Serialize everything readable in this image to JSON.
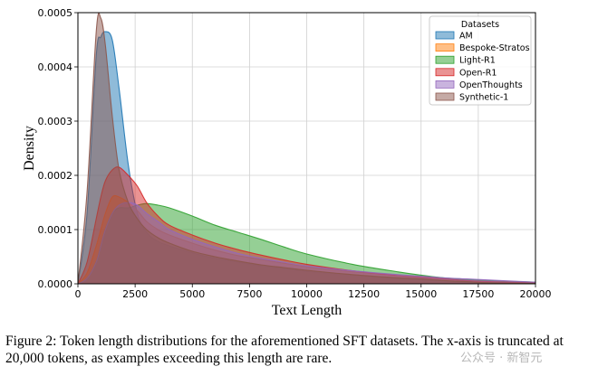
{
  "chart_data": {
    "type": "area",
    "title": "",
    "xlabel": "Text Length",
    "ylabel": "Density",
    "xlim": [
      0,
      20000
    ],
    "ylim": [
      0,
      0.0005
    ],
    "x_ticks": [
      "0",
      "2500",
      "5000",
      "7500",
      "10000",
      "12500",
      "15000",
      "17500",
      "20000"
    ],
    "y_ticks": [
      "0.0000",
      "0.0001",
      "0.0002",
      "0.0003",
      "0.0004",
      "0.0005"
    ],
    "grid": true,
    "legend": {
      "title": "Datasets",
      "position": "top-right"
    },
    "x": [
      0,
      400,
      800,
      1000,
      1200,
      1500,
      1800,
      2200,
      2600,
      3000,
      3500,
      4000,
      5000,
      6000,
      7000,
      8000,
      9000,
      10000,
      12000,
      14000,
      15000,
      16000,
      17000,
      18000,
      20000
    ],
    "series": [
      {
        "name": "AM",
        "color": "#1f77b4",
        "values": [
          0,
          0.00013,
          0.00042,
          0.000455,
          0.000465,
          0.00045,
          0.00036,
          0.00022,
          0.00013,
          9.5e-05,
          7.8e-05,
          7e-05,
          5.7e-05,
          4.7e-05,
          4e-05,
          3.3e-05,
          2.8e-05,
          2.3e-05,
          1.6e-05,
          1e-05,
          8e-06,
          5e-06,
          3e-06,
          2e-06,
          1e-06
        ]
      },
      {
        "name": "Bespoke-Stratos",
        "color": "#ff7f0e",
        "values": [
          0,
          2e-05,
          7e-05,
          0.0001,
          0.00013,
          0.00016,
          0.00016,
          0.00015,
          0.000135,
          0.000115,
          0.0001,
          9e-05,
          7.5e-05,
          6.2e-05,
          5.2e-05,
          4.5e-05,
          3.8e-05,
          3.2e-05,
          2.2e-05,
          1.5e-05,
          1.3e-05,
          1e-05,
          5e-06,
          2e-06,
          1e-06
        ]
      },
      {
        "name": "Light-R1",
        "color": "#2ca02c",
        "values": [
          0,
          1e-05,
          4e-05,
          7e-05,
          0.0001,
          0.00013,
          0.00014,
          0.00014,
          0.000145,
          0.000148,
          0.000145,
          0.00014,
          0.000125,
          0.000108,
          9.5e-05,
          8.2e-05,
          6.8e-05,
          5.5e-05,
          3.6e-05,
          2.2e-05,
          1.6e-05,
          1.1e-05,
          8e-06,
          6e-06,
          3e-06
        ]
      },
      {
        "name": "Open-R1",
        "color": "#d62728",
        "values": [
          0,
          4e-05,
          0.00012,
          0.00016,
          0.00019,
          0.00021,
          0.000215,
          0.0002,
          0.00018,
          0.00015,
          0.000125,
          0.000108,
          9e-05,
          7.5e-05,
          6.3e-05,
          5.3e-05,
          4.4e-05,
          3.6e-05,
          2.4e-05,
          1.5e-05,
          1.2e-05,
          9e-06,
          6e-06,
          4e-06,
          2e-06
        ]
      },
      {
        "name": "OpenThoughts",
        "color": "#9467bd",
        "values": [
          0,
          1e-05,
          4e-05,
          7e-05,
          0.0001,
          0.00013,
          0.000145,
          0.00015,
          0.000145,
          0.00013,
          0.000115,
          0.0001,
          8.2e-05,
          6.8e-05,
          5.6e-05,
          4.7e-05,
          4e-05,
          3.3e-05,
          2.4e-05,
          1.7e-05,
          1.4e-05,
          1.1e-05,
          9e-06,
          7e-06,
          3e-06
        ]
      },
      {
        "name": "Synthetic-1",
        "color": "#8c564b",
        "values": [
          0,
          0.00017,
          0.000465,
          0.00049,
          0.00044,
          0.00031,
          0.00021,
          0.00015,
          0.00012,
          0.0001,
          8.5e-05,
          7.5e-05,
          6e-05,
          5e-05,
          4.2e-05,
          3.5e-05,
          3e-05,
          2.5e-05,
          1.7e-05,
          1.1e-05,
          9e-06,
          6e-06,
          4e-06,
          2e-06,
          1e-06
        ]
      }
    ]
  },
  "caption": "Figure 2: Token length distributions for the aforementioned SFT datasets. The x-axis is truncated at 20,000 tokens, as examples exceeding this length are rare.",
  "watermark": "公众号 · 新智元"
}
